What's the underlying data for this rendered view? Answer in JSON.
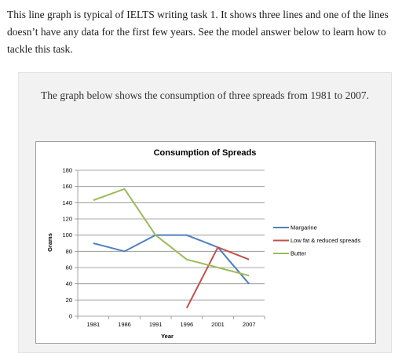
{
  "intro_text": "This line graph is typical of IELTS writing task 1. It shows three lines and one of the lines doesn’t have any data for the first few years. See the model answer below to learn how to tackle this task.",
  "task_prompt": "The graph below shows the consumption of three spreads from 1981 to 2007.",
  "chart_data": {
    "type": "line",
    "title": "Consumption of Spreads",
    "xlabel": "Year",
    "ylabel": "Grams",
    "categories": [
      "1981",
      "1986",
      "1991",
      "1996",
      "2001",
      "2007"
    ],
    "ylim": [
      0,
      180
    ],
    "yticks": [
      0,
      20,
      40,
      60,
      80,
      100,
      120,
      140,
      160,
      180
    ],
    "grid": true,
    "legend_position": "right",
    "series": [
      {
        "name": "Margarine",
        "color": "#4f81bd",
        "values": [
          90,
          80,
          100,
          100,
          85,
          40
        ]
      },
      {
        "name": "Low fat & reduced spreads",
        "color": "#c0504d",
        "values": [
          null,
          null,
          null,
          10,
          85,
          70
        ]
      },
      {
        "name": "Butter",
        "color": "#9bbb59",
        "values": [
          143,
          157,
          100,
          70,
          60,
          50
        ]
      }
    ]
  }
}
